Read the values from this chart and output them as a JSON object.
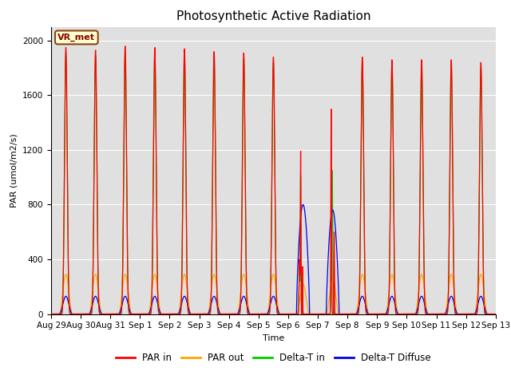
{
  "title": "Photosynthetic Active Radiation",
  "xlabel": "Time",
  "ylabel": "PAR (umol/m2/s)",
  "ylim": [
    0,
    2100
  ],
  "yticks": [
    0,
    400,
    800,
    1200,
    1600,
    2000
  ],
  "annotation_text": "VR_met",
  "background_color": "#e0e0e0",
  "colors": {
    "PAR in": "#ff0000",
    "PAR out": "#ffa500",
    "Delta-T in": "#00cc00",
    "Delta-T Diffuse": "#0000ee"
  },
  "legend_labels": [
    "PAR in",
    "PAR out",
    "Delta-T in",
    "Delta-T Diffuse"
  ],
  "n_days": 15,
  "tick_labels": [
    "Aug 29",
    "Aug 30",
    "Aug 31",
    "Sep 1",
    "Sep 2",
    "Sep 3",
    "Sep 4",
    "Sep 5",
    "Sep 6",
    "Sep 7",
    "Sep 8",
    "Sep 9",
    "Sep 10",
    "Sep 11",
    "Sep 12",
    "Sep 13"
  ]
}
